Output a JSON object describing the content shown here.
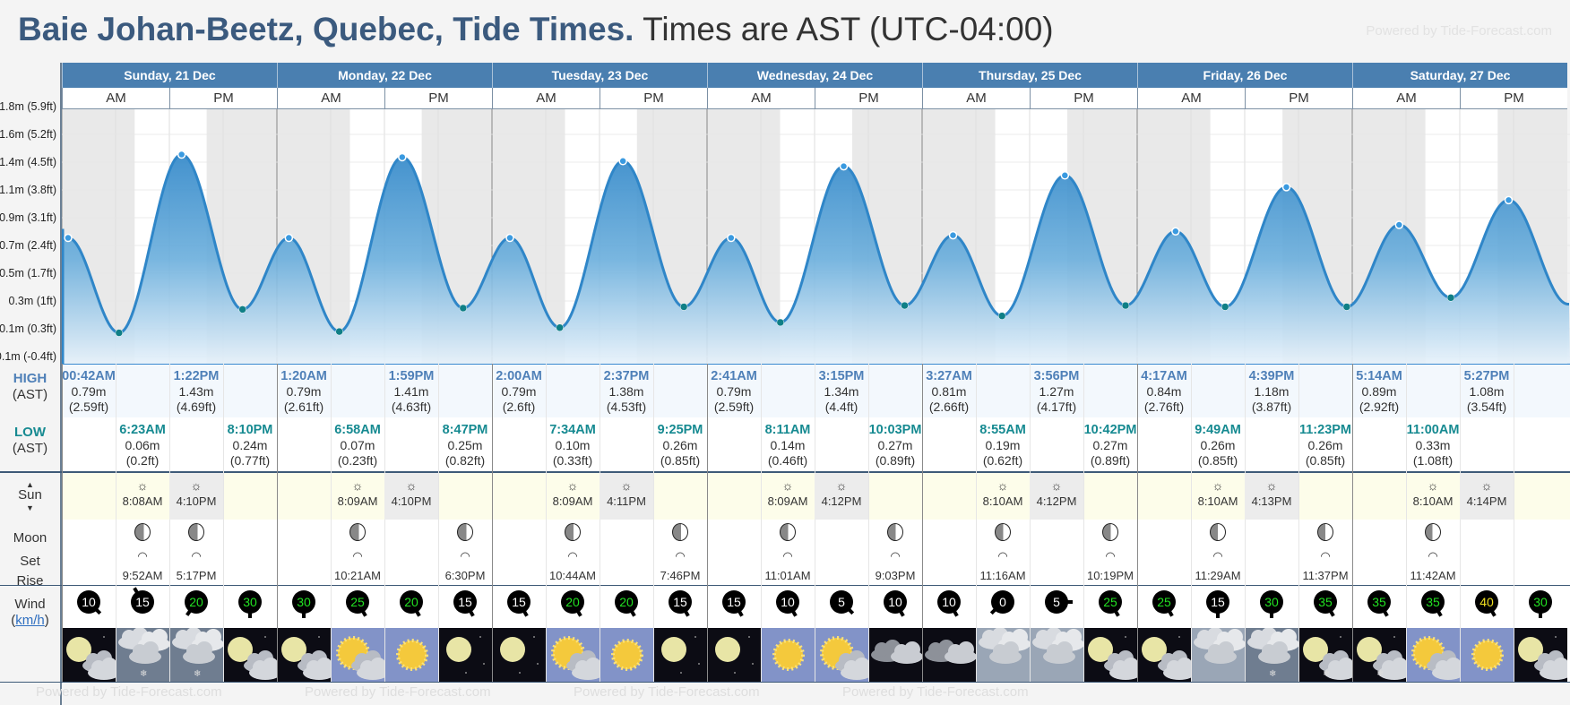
{
  "header": {
    "location": "Baie Johan-Beetz, Quebec, Tide Times.",
    "timezone": "Times are AST (UTC-04:00)",
    "powered": "Powered by Tide-Forecast.com"
  },
  "left_labels": {
    "high": "HIGH",
    "low": "LOW",
    "ast": "(AST)",
    "sun": "Sun",
    "moon": "Moon",
    "set": "Set",
    "rise": "Rise",
    "wind": "Wind",
    "wind_unit": "km/h"
  },
  "ampm": {
    "am": "AM",
    "pm": "PM"
  },
  "colors": {
    "header": "#4a7fb0",
    "high": "#4f80b8",
    "low": "#168a91",
    "line": "#2f86c8",
    "wind_strong": "#22e022",
    "wind_very_strong": "#f0e020"
  },
  "chart_data": {
    "type": "area",
    "y_min_m": -0.122,
    "y_step_m": 0.2134,
    "y_ticks": [
      "-0.1m (-0.4ft)",
      "0.1m (0.3ft)",
      "0.3m (1ft)",
      "0.5m (1.7ft)",
      "0.7m (2.4ft)",
      "0.9m (3.1ft)",
      "1.1m (3.8ft)",
      "1.4m (4.5ft)",
      "1.6m (5.2ft)",
      "1.8m (5.9ft)"
    ],
    "boundary_before": {
      "hour": -4.5,
      "value": 0.24
    },
    "boundary_after": {
      "hour": 168.1,
      "value": 0.28
    }
  },
  "days": [
    {
      "label": "Sunday, 21 Dec",
      "tides": [
        {
          "type": "high",
          "time": "00:42AM",
          "m": "0.79m",
          "ft": "(2.59ft)",
          "v": 0.79
        },
        {
          "type": "low",
          "time": "6:23AM",
          "m": "0.06m",
          "ft": "(0.2ft)",
          "v": 0.06
        },
        {
          "type": "high",
          "time": "1:22PM",
          "m": "1.43m",
          "ft": "(4.69ft)",
          "v": 1.43
        },
        {
          "type": "low",
          "time": "8:10PM",
          "m": "0.24m",
          "ft": "(0.77ft)",
          "v": 0.24
        }
      ],
      "sun": {
        "rise": "8:08AM",
        "set": "4:10PM"
      },
      "moon": [
        {
          "slot": 1,
          "kind": "rise",
          "time": "9:52AM"
        },
        {
          "slot": 2,
          "kind": "set",
          "time": "5:17PM"
        }
      ],
      "wind": [
        {
          "s": 10,
          "d": 135
        },
        {
          "s": 15,
          "d": 330
        },
        {
          "s": 20,
          "d": 215
        },
        {
          "s": 30,
          "d": 180
        }
      ],
      "weather": [
        "moon-cloud",
        "snow",
        "snow",
        "moon-cloud"
      ]
    },
    {
      "label": "Monday, 22 Dec",
      "tides": [
        {
          "type": "high",
          "time": "1:20AM",
          "m": "0.79m",
          "ft": "(2.61ft)",
          "v": 0.79
        },
        {
          "type": "low",
          "time": "6:58AM",
          "m": "0.07m",
          "ft": "(0.23ft)",
          "v": 0.07
        },
        {
          "type": "high",
          "time": "1:59PM",
          "m": "1.41m",
          "ft": "(4.63ft)",
          "v": 1.41
        },
        {
          "type": "low",
          "time": "8:47PM",
          "m": "0.25m",
          "ft": "(0.82ft)",
          "v": 0.25
        }
      ],
      "sun": {
        "rise": "8:09AM",
        "set": "4:10PM"
      },
      "moon": [
        {
          "slot": 1,
          "kind": "rise",
          "time": "10:21AM"
        },
        {
          "slot": 3,
          "kind": "set",
          "time": "6:30PM"
        }
      ],
      "wind": [
        {
          "s": 30,
          "d": 180
        },
        {
          "s": 25,
          "d": 150
        },
        {
          "s": 20,
          "d": 150
        },
        {
          "s": 15,
          "d": 150
        }
      ],
      "weather": [
        "moon-cloud",
        "sun-cloud",
        "sun",
        "moon"
      ]
    },
    {
      "label": "Tuesday, 23 Dec",
      "tides": [
        {
          "type": "high",
          "time": "2:00AM",
          "m": "0.79m",
          "ft": "(2.6ft)",
          "v": 0.79
        },
        {
          "type": "low",
          "time": "7:34AM",
          "m": "0.10m",
          "ft": "(0.33ft)",
          "v": 0.1
        },
        {
          "type": "high",
          "time": "2:37PM",
          "m": "1.38m",
          "ft": "(4.53ft)",
          "v": 1.38
        },
        {
          "type": "low",
          "time": "9:25PM",
          "m": "0.26m",
          "ft": "(0.85ft)",
          "v": 0.26
        }
      ],
      "sun": {
        "rise": "8:09AM",
        "set": "4:11PM"
      },
      "moon": [
        {
          "slot": 1,
          "kind": "rise",
          "time": "10:44AM"
        },
        {
          "slot": 3,
          "kind": "set",
          "time": "7:46PM"
        }
      ],
      "wind": [
        {
          "s": 15,
          "d": 150
        },
        {
          "s": 20,
          "d": 150
        },
        {
          "s": 20,
          "d": 150
        },
        {
          "s": 15,
          "d": 150
        }
      ],
      "weather": [
        "moon",
        "sun-cloud",
        "sun",
        "moon"
      ]
    },
    {
      "label": "Wednesday, 24 Dec",
      "tides": [
        {
          "type": "high",
          "time": "2:41AM",
          "m": "0.79m",
          "ft": "(2.59ft)",
          "v": 0.79
        },
        {
          "type": "low",
          "time": "8:11AM",
          "m": "0.14m",
          "ft": "(0.46ft)",
          "v": 0.14
        },
        {
          "type": "high",
          "time": "3:15PM",
          "m": "1.34m",
          "ft": "(4.4ft)",
          "v": 1.34
        },
        {
          "type": "low",
          "time": "10:03PM",
          "m": "0.27m",
          "ft": "(0.89ft)",
          "v": 0.27
        }
      ],
      "sun": {
        "rise": "8:09AM",
        "set": "4:12PM"
      },
      "moon": [
        {
          "slot": 1,
          "kind": "rise",
          "time": "11:01AM"
        },
        {
          "slot": 3,
          "kind": "set",
          "time": "9:03PM"
        }
      ],
      "wind": [
        {
          "s": 15,
          "d": 150
        },
        {
          "s": 10,
          "d": 150
        },
        {
          "s": 5,
          "d": 135
        },
        {
          "s": 10,
          "d": 150
        }
      ],
      "weather": [
        "moon",
        "sun",
        "sun-cloud",
        "cloud-night"
      ]
    },
    {
      "label": "Thursday, 25 Dec",
      "tides": [
        {
          "type": "high",
          "time": "3:27AM",
          "m": "0.81m",
          "ft": "(2.66ft)",
          "v": 0.81
        },
        {
          "type": "low",
          "time": "8:55AM",
          "m": "0.19m",
          "ft": "(0.62ft)",
          "v": 0.19
        },
        {
          "type": "high",
          "time": "3:56PM",
          "m": "1.27m",
          "ft": "(4.17ft)",
          "v": 1.27
        },
        {
          "type": "low",
          "time": "10:42PM",
          "m": "0.27m",
          "ft": "(0.89ft)",
          "v": 0.27
        }
      ],
      "sun": {
        "rise": "8:10AM",
        "set": "4:12PM"
      },
      "moon": [
        {
          "slot": 1,
          "kind": "rise",
          "time": "11:16AM"
        },
        {
          "slot": 3,
          "kind": "set",
          "time": "10:19PM"
        }
      ],
      "wind": [
        {
          "s": 10,
          "d": 150
        },
        {
          "s": 0,
          "d": 225
        },
        {
          "s": 5,
          "d": 90
        },
        {
          "s": 25,
          "d": 150
        }
      ],
      "weather": [
        "cloud-night",
        "overcast",
        "overcast",
        "moon-cloud"
      ]
    },
    {
      "label": "Friday, 26 Dec",
      "tides": [
        {
          "type": "high",
          "time": "4:17AM",
          "m": "0.84m",
          "ft": "(2.76ft)",
          "v": 0.84
        },
        {
          "type": "low",
          "time": "9:49AM",
          "m": "0.26m",
          "ft": "(0.85ft)",
          "v": 0.26
        },
        {
          "type": "high",
          "time": "4:39PM",
          "m": "1.18m",
          "ft": "(3.87ft)",
          "v": 1.18
        },
        {
          "type": "low",
          "time": "11:23PM",
          "m": "0.26m",
          "ft": "(0.85ft)",
          "v": 0.26
        }
      ],
      "sun": {
        "rise": "8:10AM",
        "set": "4:13PM"
      },
      "moon": [
        {
          "slot": 1,
          "kind": "rise",
          "time": "11:29AM"
        },
        {
          "slot": 3,
          "kind": "set",
          "time": "11:37PM"
        }
      ],
      "wind": [
        {
          "s": 25,
          "d": 150
        },
        {
          "s": 15,
          "d": 180
        },
        {
          "s": 30,
          "d": 180
        },
        {
          "s": 35,
          "d": 150
        }
      ],
      "weather": [
        "moon-cloud",
        "overcast",
        "snow",
        "moon-cloud-snow"
      ]
    },
    {
      "label": "Saturday, 27 Dec",
      "tides": [
        {
          "type": "high",
          "time": "5:14AM",
          "m": "0.89m",
          "ft": "(2.92ft)",
          "v": 0.89
        },
        {
          "type": "low",
          "time": "11:00AM",
          "m": "0.33m",
          "ft": "(1.08ft)",
          "v": 0.33
        },
        {
          "type": "high",
          "time": "5:27PM",
          "m": "1.08m",
          "ft": "(3.54ft)",
          "v": 1.08
        }
      ],
      "sun": {
        "rise": "8:10AM",
        "set": "4:14PM"
      },
      "moon": [
        {
          "slot": 1,
          "kind": "rise",
          "time": "11:42AM"
        }
      ],
      "wind": [
        {
          "s": 35,
          "d": 150
        },
        {
          "s": 35,
          "d": 150
        },
        {
          "s": 40,
          "d": 150
        },
        {
          "s": 30,
          "d": 180
        }
      ],
      "weather": [
        "moon-cloud-snow",
        "sun-cloud",
        "sun",
        "moon-cloud"
      ]
    }
  ]
}
